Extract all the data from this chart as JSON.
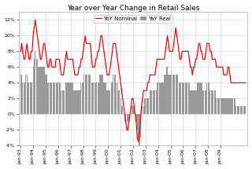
{
  "title": "Year over Year Change in Retail Sales",
  "legend_labels": [
    "YoY Nominal",
    "YaY Real"
  ],
  "bar_color": "#999999",
  "line_color": "#ff0000",
  "background_color": "#ffffff",
  "grid_color": "#cccccc",
  "ylim": [
    -0.04,
    0.13
  ],
  "yticks": [
    -0.04,
    -0.02,
    0.0,
    0.02,
    0.04,
    0.06,
    0.08,
    0.1,
    0.12
  ],
  "ytick_labels": [
    "-4%",
    "-2%",
    "0%",
    "2%",
    "4%",
    "6%",
    "8%",
    "10%",
    "12%"
  ],
  "x_start_year": 1993,
  "x_end_year": 2008,
  "title_fontsize": 6.5,
  "legend_fontsize": 5.0,
  "tick_fontsize": 4.5,
  "nominal": [
    0.08,
    0.09,
    0.08,
    0.07,
    0.07,
    0.08,
    0.09,
    0.08,
    0.07,
    0.07,
    0.08,
    0.08,
    0.1,
    0.11,
    0.12,
    0.11,
    0.1,
    0.09,
    0.08,
    0.07,
    0.07,
    0.08,
    0.09,
    0.09,
    0.08,
    0.07,
    0.06,
    0.06,
    0.07,
    0.07,
    0.06,
    0.06,
    0.06,
    0.06,
    0.07,
    0.07,
    0.07,
    0.07,
    0.06,
    0.05,
    0.05,
    0.05,
    0.06,
    0.07,
    0.08,
    0.07,
    0.07,
    0.07,
    0.07,
    0.07,
    0.07,
    0.06,
    0.05,
    0.05,
    0.05,
    0.05,
    0.06,
    0.06,
    0.07,
    0.07,
    0.08,
    0.09,
    0.1,
    0.09,
    0.09,
    0.09,
    0.09,
    0.09,
    0.07,
    0.06,
    0.06,
    0.06,
    0.07,
    0.07,
    0.08,
    0.08,
    0.09,
    0.1,
    0.1,
    0.09,
    0.08,
    0.07,
    0.06,
    0.05,
    0.05,
    0.05,
    0.06,
    0.07,
    0.08,
    0.09,
    0.09,
    0.09,
    0.08,
    0.07,
    0.06,
    0.05,
    0.04,
    0.03,
    0.02,
    0.01,
    0.0,
    -0.01,
    -0.02,
    -0.02,
    -0.01,
    0.0,
    0.01,
    0.02,
    0.02,
    0.01,
    0.0,
    -0.01,
    -0.03,
    -0.035,
    -0.025,
    -0.01,
    0.01,
    0.02,
    0.03,
    0.03,
    0.03,
    0.03,
    0.04,
    0.04,
    0.05,
    0.05,
    0.05,
    0.05,
    0.05,
    0.05,
    0.06,
    0.07,
    0.07,
    0.07,
    0.07,
    0.07,
    0.07,
    0.07,
    0.07,
    0.08,
    0.09,
    0.1,
    0.09,
    0.08,
    0.08,
    0.08,
    0.08,
    0.09,
    0.1,
    0.11,
    0.1,
    0.09,
    0.08,
    0.07,
    0.07,
    0.08,
    0.08,
    0.08,
    0.08,
    0.08,
    0.08,
    0.08,
    0.07,
    0.06,
    0.06,
    0.05,
    0.06,
    0.06,
    0.07,
    0.07,
    0.08,
    0.09,
    0.09,
    0.08,
    0.08,
    0.07,
    0.07,
    0.07,
    0.08,
    0.09,
    0.09,
    0.09,
    0.08,
    0.08,
    0.07,
    0.07,
    0.07,
    0.07,
    0.06,
    0.06,
    0.06,
    0.06,
    0.06,
    0.06,
    0.06,
    0.05,
    0.05,
    0.05,
    0.05,
    0.06,
    0.06,
    0.05,
    0.04,
    0.04,
    0.04,
    0.04,
    0.04,
    0.04,
    0.04,
    0.04,
    0.04,
    0.04,
    0.04,
    0.04,
    0.04,
    0.04,
    0.04
  ],
  "real": [
    0.05,
    0.05,
    0.04,
    0.04,
    0.04,
    0.05,
    0.05,
    0.04,
    0.04,
    0.04,
    0.04,
    0.04,
    0.06,
    0.07,
    0.08,
    0.07,
    0.07,
    0.06,
    0.06,
    0.06,
    0.06,
    0.06,
    0.06,
    0.06,
    0.05,
    0.05,
    0.04,
    0.04,
    0.04,
    0.04,
    0.04,
    0.04,
    0.04,
    0.04,
    0.04,
    0.04,
    0.04,
    0.04,
    0.04,
    0.03,
    0.03,
    0.03,
    0.03,
    0.04,
    0.04,
    0.04,
    0.04,
    0.04,
    0.04,
    0.04,
    0.04,
    0.03,
    0.03,
    0.03,
    0.03,
    0.03,
    0.03,
    0.03,
    0.04,
    0.04,
    0.04,
    0.05,
    0.05,
    0.05,
    0.05,
    0.05,
    0.05,
    0.05,
    0.04,
    0.04,
    0.04,
    0.04,
    0.04,
    0.04,
    0.04,
    0.04,
    0.05,
    0.05,
    0.05,
    0.05,
    0.04,
    0.04,
    0.04,
    0.03,
    0.03,
    0.03,
    0.03,
    0.04,
    0.04,
    0.05,
    0.05,
    0.05,
    0.04,
    0.04,
    0.03,
    0.03,
    0.02,
    0.01,
    0.01,
    0.0,
    -0.01,
    -0.01,
    -0.01,
    -0.01,
    -0.01,
    0.0,
    0.0,
    0.01,
    0.01,
    0.01,
    0.0,
    -0.01,
    -0.02,
    -0.03,
    -0.04,
    -0.03,
    0.0,
    0.01,
    0.01,
    0.02,
    0.02,
    0.02,
    0.02,
    0.02,
    0.03,
    0.03,
    0.03,
    0.03,
    0.03,
    0.03,
    0.03,
    0.04,
    0.04,
    0.04,
    0.04,
    0.04,
    0.04,
    0.04,
    0.05,
    0.05,
    0.06,
    0.06,
    0.05,
    0.05,
    0.05,
    0.05,
    0.05,
    0.05,
    0.05,
    0.05,
    0.05,
    0.05,
    0.04,
    0.04,
    0.04,
    0.04,
    0.04,
    0.04,
    0.04,
    0.04,
    0.04,
    0.04,
    0.04,
    0.03,
    0.03,
    0.03,
    0.03,
    0.03,
    0.03,
    0.03,
    0.04,
    0.04,
    0.04,
    0.04,
    0.04,
    0.03,
    0.03,
    0.03,
    0.03,
    0.04,
    0.04,
    0.04,
    0.03,
    0.03,
    0.03,
    0.03,
    0.03,
    0.03,
    0.02,
    0.02,
    0.02,
    0.02,
    0.02,
    0.02,
    0.02,
    0.02,
    0.02,
    0.02,
    0.02,
    0.02,
    0.02,
    0.02,
    0.02,
    0.02,
    0.02,
    0.02,
    0.02,
    0.01,
    0.01,
    0.01,
    0.01,
    0.01,
    0.01,
    0.01,
    0.01,
    0.01,
    0.01
  ]
}
